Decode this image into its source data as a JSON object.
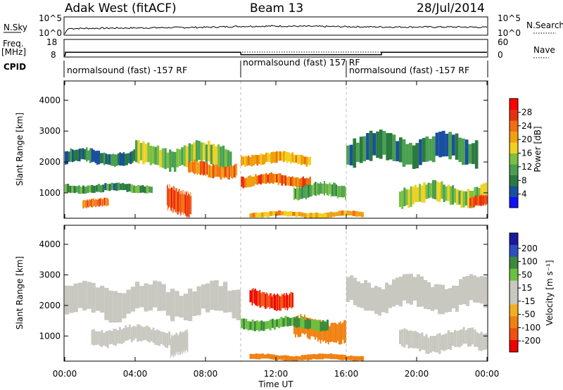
{
  "header": {
    "station": "Adak West (fitACF)",
    "beam": "Beam 13",
    "date": "28/Jul/2014"
  },
  "noise_panel": {
    "left_label": "N.Sky",
    "right_label": "N.Search",
    "left_ticks": [
      "10^5",
      "10^0"
    ],
    "right_ticks": [
      "10^5",
      "10^0"
    ]
  },
  "freq_panel": {
    "left_label_line1": "Freq.",
    "left_label_line2": "[MHz]",
    "right_label": "Nave",
    "left_ticks": [
      "18",
      "8"
    ],
    "right_ticks": [
      "60",
      "0"
    ]
  },
  "cpid": {
    "label": "CPID",
    "segments": [
      {
        "text": "normalsound (fast) -157 RF",
        "start_hour": 0
      },
      {
        "text": "normalsound (fast) 157 RF",
        "start_hour": 10
      },
      {
        "text": "normalsound (fast) -157 RF",
        "start_hour": 16
      }
    ]
  },
  "x_axis": {
    "title": "Time UT",
    "tick_labels": [
      "00:00",
      "04:00",
      "08:00",
      "12:00",
      "16:00",
      "20:00",
      "00:00"
    ],
    "tick_hours": [
      0,
      4,
      8,
      12,
      16,
      20,
      24
    ]
  },
  "power_panel": {
    "ylabel": "Slant Range [km]",
    "ytick_labels": [
      "1000",
      "2000",
      "3000",
      "4000"
    ],
    "ytick_values": [
      1000,
      2000,
      3000,
      4000
    ],
    "colorbar": {
      "label": "Power [dB]",
      "tick_labels": [
        "4",
        "8",
        "12",
        "16",
        "20",
        "24",
        "28"
      ],
      "tick_values": [
        4,
        8,
        12,
        16,
        20,
        24,
        28
      ],
      "colors": [
        "#1010ff",
        "#1a4fa0",
        "#2a7a40",
        "#4aa050",
        "#7cc040",
        "#f0d020",
        "#f0a010",
        "#f07010",
        "#e83010",
        "#ff0000"
      ]
    }
  },
  "velocity_panel": {
    "ylabel": "Slant Range [km]",
    "ytick_labels": [
      "1000",
      "2000",
      "3000",
      "4000"
    ],
    "ytick_values": [
      1000,
      2000,
      3000,
      4000
    ],
    "colorbar": {
      "label": "Velocity [m s⁻¹]",
      "tick_labels": [
        "200",
        "100",
        "50",
        "15",
        "-15",
        "-50",
        "-100",
        "-200"
      ],
      "colors": [
        "#1a1aa0",
        "#2e4fc0",
        "#3a8a3a",
        "#6cc040",
        "#c8c8c0",
        "#c8c8c0",
        "#f0b020",
        "#f08010",
        "#f05010",
        "#ee0000"
      ]
    }
  },
  "chart_data": [
    {
      "type": "line",
      "title": "N.Sky / N.Search",
      "x_unit": "hours UT",
      "series": [
        {
          "name": "N.Sky",
          "x": [
            0,
            0.1,
            0.2,
            2,
            4,
            6,
            8,
            10,
            12,
            14,
            16,
            18,
            20,
            22,
            24
          ],
          "y_log10": [
            0,
            1.0,
            1.7,
            1.8,
            1.9,
            2.0,
            2.1,
            2.4,
            2.5,
            2.4,
            2.3,
            2.2,
            2.2,
            2.2,
            2.1
          ]
        }
      ],
      "ylim_log10": [
        0,
        5
      ]
    },
    {
      "type": "line",
      "title": "Freq. / Nave",
      "series": [
        {
          "name": "Freq.",
          "x": [
            0,
            0.05,
            10,
            10.01,
            18,
            18.01,
            24
          ],
          "y": [
            8,
            10.5,
            10.5,
            9.0,
            9.0,
            10.5,
            10.5
          ]
        },
        {
          "name": "Nave",
          "x": [
            0,
            24
          ],
          "y": [
            8,
            8
          ]
        }
      ],
      "ylim": [
        8,
        18
      ]
    },
    {
      "type": "heatmap",
      "title": "Power [dB]",
      "x_range_hours": [
        0,
        24
      ],
      "y_range_km": [
        200,
        4600
      ],
      "regions": [
        {
          "hours": [
            0.0,
            4.0
          ],
          "km": [
            1900,
            2400
          ],
          "value": 8
        },
        {
          "hours": [
            4.0,
            9.5
          ],
          "km": [
            1800,
            2600
          ],
          "value": 14
        },
        {
          "hours": [
            7.0,
            9.8
          ],
          "km": [
            1500,
            2000
          ],
          "value": 24
        },
        {
          "hours": [
            0.0,
            5.0
          ],
          "km": [
            1000,
            1300
          ],
          "value": 10
        },
        {
          "hours": [
            1.0,
            2.5
          ],
          "km": [
            500,
            800
          ],
          "value": 24
        },
        {
          "hours": [
            5.8,
            7.2
          ],
          "km": [
            300,
            1200
          ],
          "value": 26
        },
        {
          "hours": [
            10.0,
            14.0
          ],
          "km": [
            1900,
            2300
          ],
          "value": 20
        },
        {
          "hours": [
            10.0,
            14.0
          ],
          "km": [
            1200,
            1600
          ],
          "value": 24
        },
        {
          "hours": [
            13.0,
            16.0
          ],
          "km": [
            800,
            1300
          ],
          "value": 12
        },
        {
          "hours": [
            16.0,
            23.5
          ],
          "km": [
            1900,
            2900
          ],
          "value": 8
        },
        {
          "hours": [
            19.0,
            24.0
          ],
          "km": [
            600,
            1300
          ],
          "value": 14
        },
        {
          "hours": [
            23.0,
            24.0
          ],
          "km": [
            500,
            900
          ],
          "value": 26
        },
        {
          "hours": [
            10.5,
            17.0
          ],
          "km": [
            200,
            400
          ],
          "value": 20
        }
      ]
    },
    {
      "type": "heatmap",
      "title": "Velocity [m s⁻¹]",
      "x_range_hours": [
        0,
        24
      ],
      "y_range_km": [
        200,
        4600
      ],
      "regions": [
        {
          "hours": [
            0.0,
            10.0
          ],
          "km": [
            1600,
            2700
          ],
          "value": 0
        },
        {
          "hours": [
            1.5,
            6.0
          ],
          "km": [
            700,
            1300
          ],
          "value": 0
        },
        {
          "hours": [
            6.0,
            7.0
          ],
          "km": [
            300,
            1100
          ],
          "value": 0
        },
        {
          "hours": [
            10.5,
            13.0
          ],
          "km": [
            1900,
            2500
          ],
          "value": -150
        },
        {
          "hours": [
            13.0,
            16.0
          ],
          "km": [
            800,
            1600
          ],
          "value": -60
        },
        {
          "hours": [
            10.0,
            15.0
          ],
          "km": [
            1200,
            1600
          ],
          "value": 30
        },
        {
          "hours": [
            16.0,
            24.0
          ],
          "km": [
            1800,
            2900
          ],
          "value": 0
        },
        {
          "hours": [
            19.0,
            24.0
          ],
          "km": [
            500,
            1200
          ],
          "value": 0
        },
        {
          "hours": [
            10.5,
            17.0
          ],
          "km": [
            200,
            400
          ],
          "value": -60
        }
      ]
    }
  ]
}
